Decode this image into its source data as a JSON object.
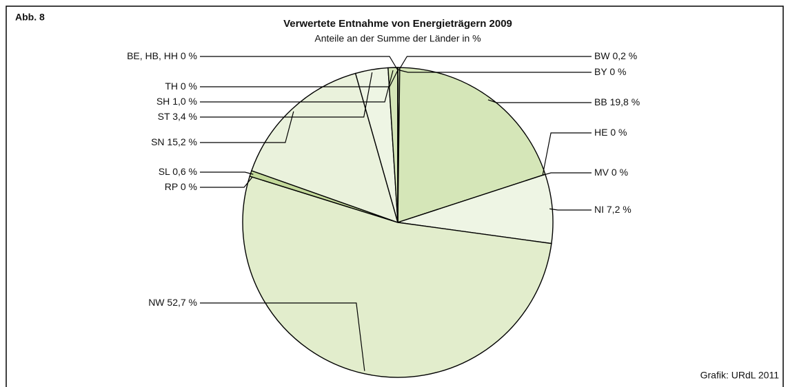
{
  "chart_data": {
    "type": "pie",
    "figure_label": "Abb. 8",
    "title": "Verwertete Entnahme von Energieträgern 2009",
    "subtitle": "Anteile an der Summe der Länder in %",
    "source": "Grafik: URdL 2011",
    "categories": [
      "BW",
      "BY",
      "BB",
      "HE",
      "MV",
      "NI",
      "NW",
      "RP",
      "SL",
      "SN",
      "ST",
      "SH",
      "TH",
      "BE, HB, HH"
    ],
    "values": [
      0.2,
      0,
      19.8,
      0,
      0,
      7.2,
      52.7,
      0,
      0.6,
      15.2,
      3.4,
      1.0,
      0,
      0
    ],
    "value_labels": [
      "0,2 %",
      "0 %",
      "19,8 %",
      "0 %",
      "0 %",
      "7,2 %",
      "52,7 %",
      "0 %",
      "0,6 %",
      "15,2 %",
      "3,4 %",
      "1,0 %",
      "0 %",
      "0 %"
    ],
    "colors": [
      "#d5e6b8",
      "#d5e6b8",
      "#d5e6b8",
      "#d5e6b8",
      "#eef5e4",
      "#eef5e4",
      "#e2edcc",
      "#c3d99a",
      "#c3d99a",
      "#eaf2dc",
      "#eef5e4",
      "#d5e6b8",
      "#d5e6b8",
      "#d5e6b8"
    ]
  }
}
